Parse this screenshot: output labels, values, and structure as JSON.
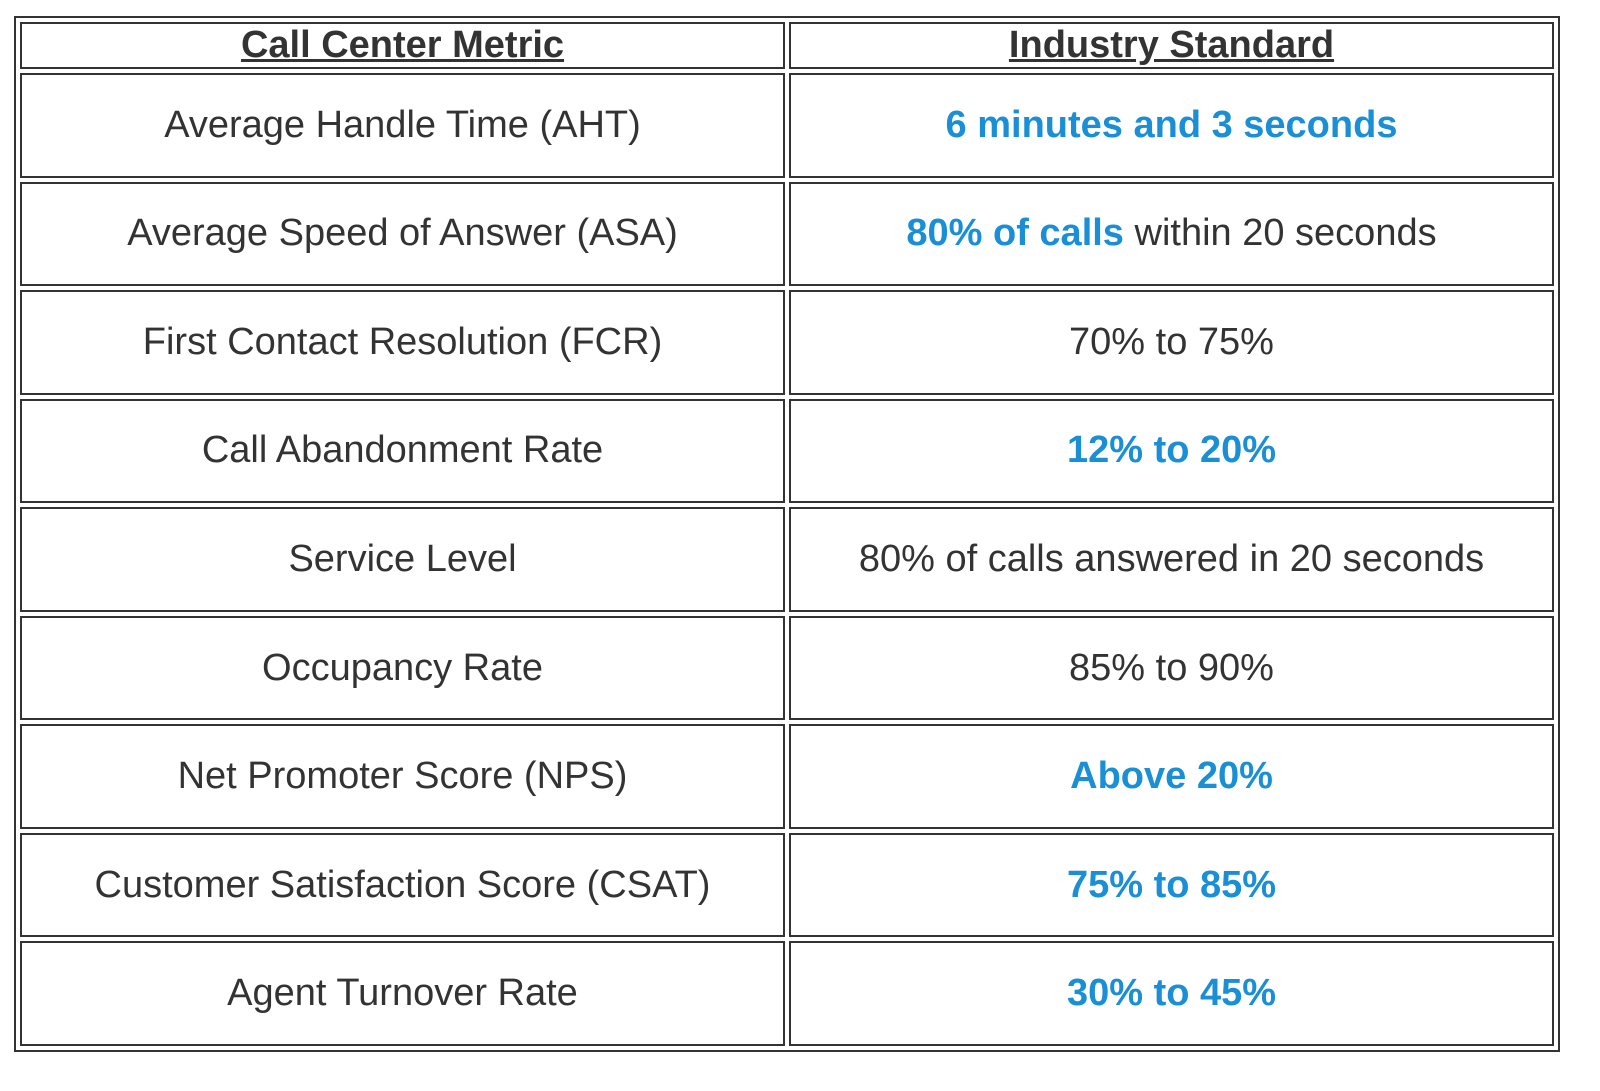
{
  "table": {
    "header": [
      "Call Center Metric",
      "Industry Standard"
    ],
    "emphasis_color": "#1a8fd6",
    "rows": [
      {
        "metric": "Average Handle Time (AHT)",
        "standard": [
          {
            "text": "6 minutes and 3 seconds",
            "emphasis": true
          }
        ]
      },
      {
        "metric": "Average Speed of Answer (ASA)",
        "standard": [
          {
            "text": "80% of calls",
            "emphasis": true
          },
          {
            "text": " within 20 seconds",
            "emphasis": false
          }
        ]
      },
      {
        "metric": "First Contact Resolution (FCR)",
        "standard": [
          {
            "text": "70% to 75%",
            "emphasis": false
          }
        ]
      },
      {
        "metric": "Call Abandonment Rate",
        "standard": [
          {
            "text": "12% to 20%",
            "emphasis": true
          }
        ]
      },
      {
        "metric": "Service Level",
        "standard": [
          {
            "text": "80% of calls answered in 20 seconds",
            "emphasis": false
          }
        ]
      },
      {
        "metric": "Occupancy Rate",
        "standard": [
          {
            "text": "85% to 90%",
            "emphasis": false
          }
        ]
      },
      {
        "metric": "Net Promoter Score (NPS)",
        "standard": [
          {
            "text": "Above 20%",
            "emphasis": true
          }
        ]
      },
      {
        "metric": "Customer Satisfaction Score (CSAT)",
        "standard": [
          {
            "text": "75% to 85%",
            "emphasis": true
          }
        ]
      },
      {
        "metric": "Agent Turnover Rate",
        "standard": [
          {
            "text": "30% to 45%",
            "emphasis": true
          }
        ]
      }
    ]
  }
}
